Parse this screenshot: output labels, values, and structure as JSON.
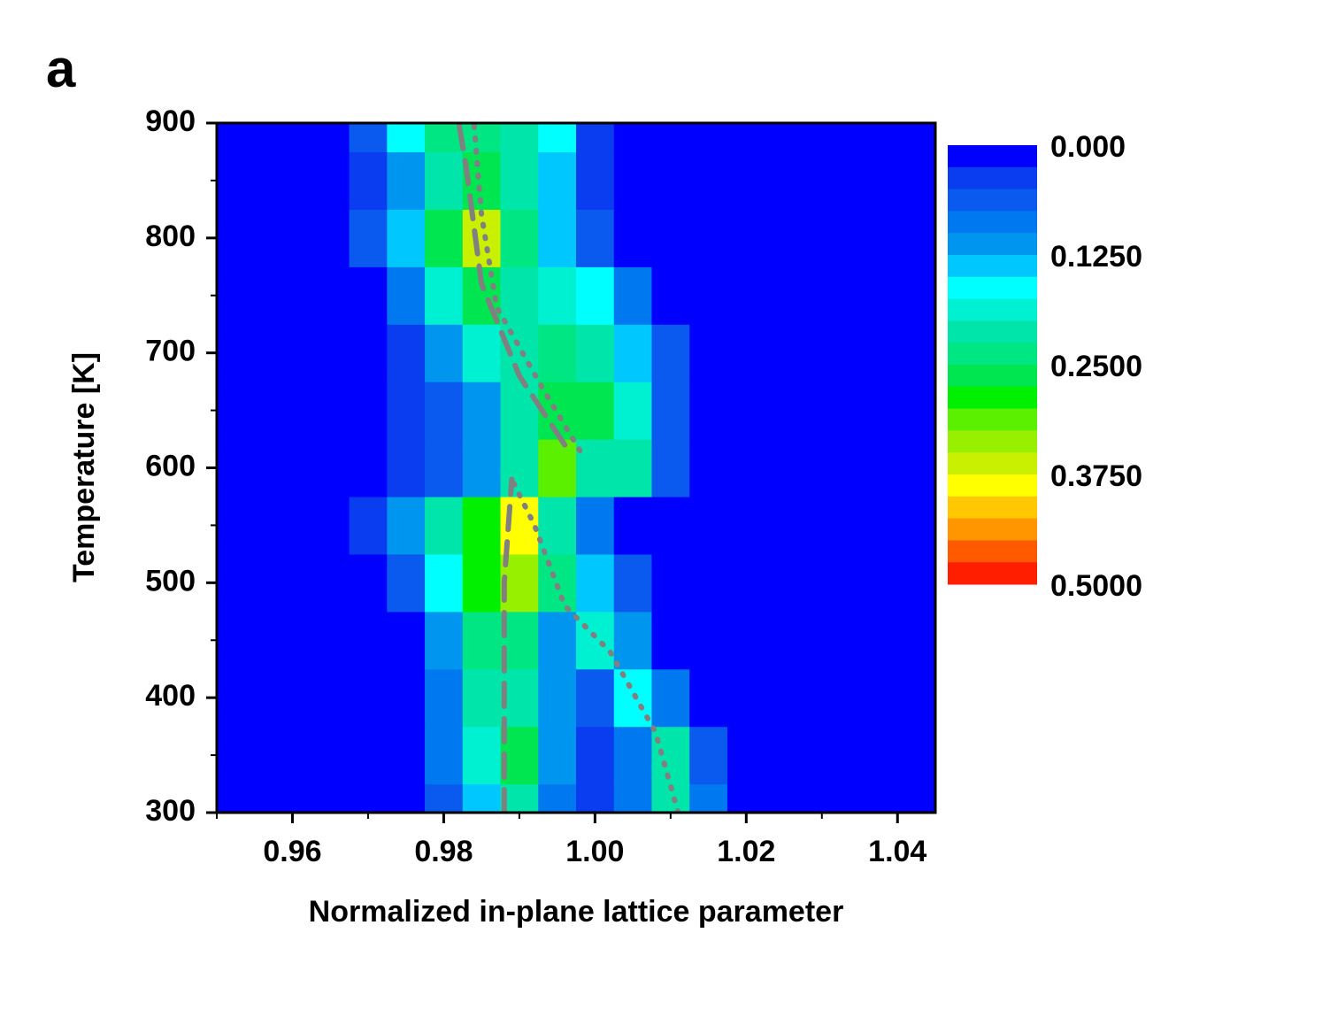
{
  "panel_label": "a",
  "chart_data": {
    "type": "contour",
    "xlabel": "Normalized in-plane lattice parameter",
    "ylabel": "Temperature [K]",
    "xlim": [
      0.95,
      1.045
    ],
    "ylim": [
      300,
      900
    ],
    "xticks": [
      0.96,
      0.98,
      {
        "value": 1,
        "label": "1.00"
      },
      1.02,
      1.04
    ],
    "xminorticks": [
      0.95,
      0.97,
      0.99,
      1.01,
      1.03
    ],
    "yticks": [
      300,
      400,
      500,
      600,
      700,
      800,
      900
    ],
    "yminorticks": [
      350,
      450,
      550,
      650,
      750,
      850
    ],
    "x": [
      0.95,
      0.955,
      0.96,
      0.965,
      0.97,
      0.975,
      0.98,
      0.985,
      0.99,
      0.995,
      1.0,
      1.005,
      1.01,
      1.015,
      1.02,
      1.025,
      1.03,
      1.035,
      1.04,
      1.045
    ],
    "y": [
      300,
      350,
      400,
      450,
      500,
      550,
      600,
      650,
      700,
      750,
      800,
      850,
      900
    ],
    "z": [
      [
        0,
        0,
        0,
        0,
        0,
        0,
        0.06,
        0.14,
        0.2,
        0.08,
        0.03,
        0.08,
        0.2,
        0.08,
        0.02,
        0,
        0,
        0,
        0,
        0
      ],
      [
        0,
        0,
        0,
        0,
        0,
        0,
        0.08,
        0.18,
        0.26,
        0.1,
        0.04,
        0.08,
        0.2,
        0.06,
        0,
        0,
        0,
        0,
        0,
        0
      ],
      [
        0,
        0,
        0,
        0,
        0,
        0,
        0.08,
        0.2,
        0.22,
        0.1,
        0.06,
        0.16,
        0.08,
        0,
        0,
        0,
        0,
        0,
        0,
        0
      ],
      [
        0,
        0,
        0,
        0,
        0,
        0.02,
        0.1,
        0.24,
        0.24,
        0.12,
        0.18,
        0.1,
        0.02,
        0,
        0,
        0,
        0,
        0,
        0,
        0
      ],
      [
        0,
        0,
        0,
        0,
        0,
        0.06,
        0.16,
        0.28,
        0.34,
        0.24,
        0.14,
        0.06,
        0,
        0,
        0,
        0,
        0,
        0,
        0,
        0
      ],
      [
        0,
        0,
        0,
        0,
        0.04,
        0.1,
        0.2,
        0.28,
        0.38,
        0.2,
        0.08,
        0.02,
        0,
        0,
        0,
        0,
        0,
        0,
        0,
        0
      ],
      [
        0,
        0,
        0,
        0,
        0.02,
        0.04,
        0.06,
        0.12,
        0.2,
        0.32,
        0.2,
        0.22,
        0.06,
        0.02,
        0,
        0,
        0,
        0,
        0,
        0
      ],
      [
        0,
        0,
        0,
        0,
        0,
        0.04,
        0.06,
        0.1,
        0.2,
        0.27,
        0.26,
        0.18,
        0.06,
        0,
        0,
        0,
        0,
        0,
        0,
        0
      ],
      [
        0,
        0,
        0,
        0,
        0,
        0.04,
        0.12,
        0.18,
        0.22,
        0.24,
        0.22,
        0.14,
        0.05,
        0,
        0,
        0,
        0,
        0,
        0,
        0
      ],
      [
        0,
        0,
        0,
        0,
        0,
        0.08,
        0.18,
        0.26,
        0.22,
        0.18,
        0.15,
        0.08,
        0.02,
        0,
        0,
        0,
        0,
        0,
        0,
        0
      ],
      [
        0,
        0,
        0,
        0,
        0.05,
        0.14,
        0.26,
        0.36,
        0.24,
        0.14,
        0.06,
        0.02,
        0,
        0,
        0,
        0,
        0,
        0,
        0,
        0
      ],
      [
        0,
        0,
        0,
        0,
        0.04,
        0.12,
        0.22,
        0.26,
        0.22,
        0.14,
        0.03,
        0,
        0,
        0,
        0,
        0,
        0,
        0,
        0,
        0
      ],
      [
        0,
        0,
        0,
        0.02,
        0.06,
        0.15,
        0.24,
        0.24,
        0.22,
        0.15,
        0.03,
        0,
        0,
        0,
        0,
        0,
        0,
        0,
        0,
        0
      ]
    ],
    "levels": [
      0,
      0.025,
      0.05,
      0.075,
      0.1,
      0.125,
      0.15,
      0.175,
      0.2,
      0.225,
      0.25,
      0.275,
      0.3,
      0.325,
      0.35,
      0.375,
      0.4,
      0.425,
      0.45,
      0.475,
      0.5
    ],
    "colors": [
      "#0000ff",
      "#0a3cf0",
      "#0a5af0",
      "#0078f0",
      "#0096f0",
      "#00c8ff",
      "#00ffff",
      "#00f0d2",
      "#00e6aa",
      "#00e682",
      "#00e650",
      "#00f000",
      "#5af000",
      "#96f000",
      "#c8f000",
      "#ffff00",
      "#ffc800",
      "#ff9600",
      "#ff5a00",
      "#ff1e00"
    ],
    "clim": [
      0,
      0.5
    ],
    "colorbar_ticks": [
      {
        "value": 0,
        "label": "0.000"
      },
      {
        "value": 0.125,
        "label": "0.1250"
      },
      {
        "value": 0.25,
        "label": "0.2500"
      },
      {
        "value": 0.375,
        "label": "0.3750"
      },
      {
        "value": 0.5,
        "label": "0.5000"
      }
    ],
    "series": [
      {
        "style": "dashed",
        "color": "#808080",
        "x": [
          0.988,
          0.988,
          0.989,
          null,
          0.996,
          0.99,
          0.985,
          0.983,
          0.982
        ],
        "y": [
          300,
          500,
          590,
          null,
          620,
          680,
          760,
          860,
          900
        ]
      },
      {
        "style": "dotted",
        "color": "#808080",
        "x": [
          1.011,
          1.008,
          1.002,
          0.996,
          0.992,
          0.989,
          null,
          0.998,
          0.993,
          0.987,
          0.985,
          0.984
        ],
        "y": [
          300,
          370,
          440,
          480,
          550,
          590,
          null,
          615,
          670,
          740,
          820,
          900
        ]
      }
    ]
  }
}
